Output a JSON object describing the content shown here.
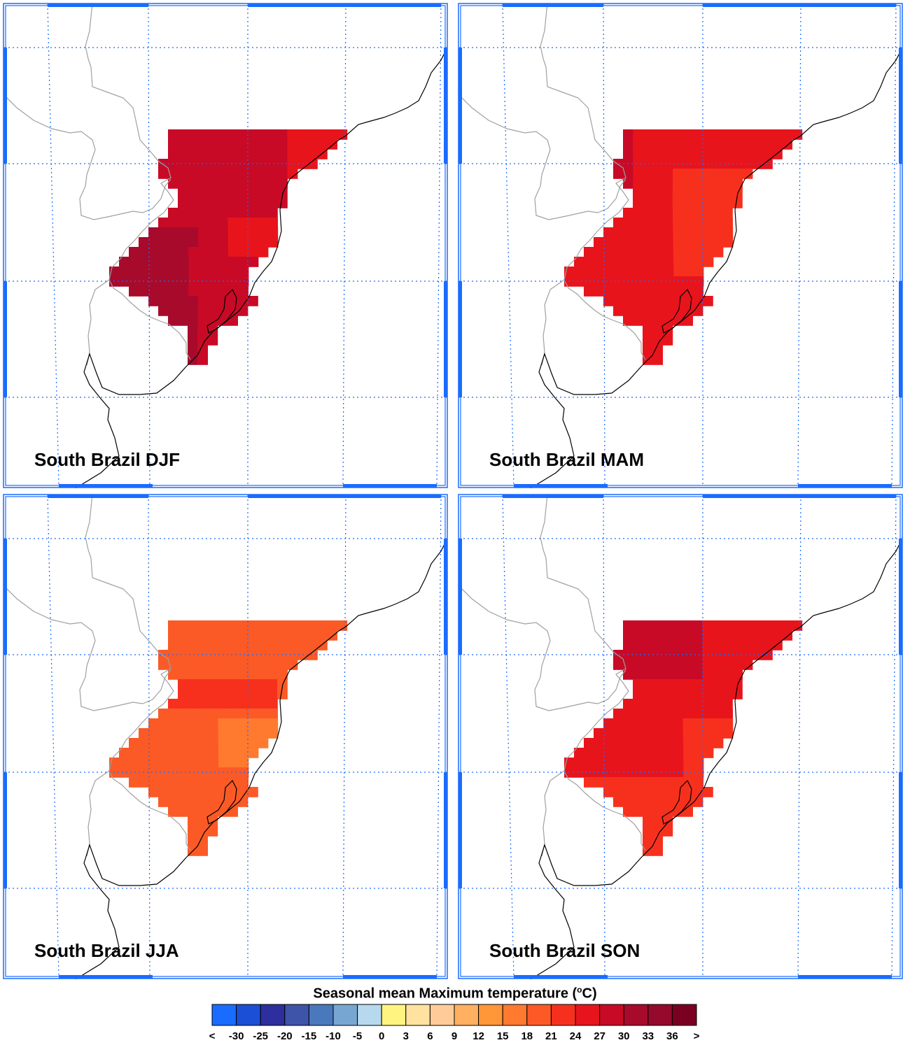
{
  "figure": {
    "panels": [
      {
        "id": "djf",
        "title": "South Brazil DJF"
      },
      {
        "id": "mam",
        "title": "South Brazil MAM"
      },
      {
        "id": "jja",
        "title": "South Brazil JJA"
      },
      {
        "id": "son",
        "title": "South Brazil SON"
      }
    ],
    "legend": {
      "title_main": "Seasonal mean Maximum temperature (",
      "title_sup": "o",
      "title_end": "C)",
      "labels": [
        "<",
        "-30",
        "-25",
        "-20",
        "-15",
        "-10",
        "-5",
        "0",
        "3",
        "6",
        "9",
        "12",
        "15",
        "18",
        "21",
        "24",
        "27",
        "30",
        "33",
        "36",
        ">"
      ],
      "colors": [
        "#1a6cff",
        "#1b4fd6",
        "#2e2e9e",
        "#3d54a8",
        "#4a78bc",
        "#78a6d2",
        "#b7d9ee",
        "#fff47f",
        "#ffe2a0",
        "#ffcc99",
        "#ffb060",
        "#ff9638",
        "#ff7a2e",
        "#fb5a26",
        "#f7301e",
        "#e8141c",
        "#c80a26",
        "#a80a2c",
        "#950a2c",
        "#7a0022"
      ]
    }
  },
  "map_style": {
    "frame_color": "#1a6cff",
    "grid_color": "#1a6cff",
    "border_color": "#a0a0a0",
    "coast_color": "#000000"
  },
  "chart_data": {
    "type": "heatmap",
    "region": "South Brazil",
    "seasons": [
      "DJF",
      "MAM",
      "JJA",
      "SON"
    ],
    "legend_levels_degC": [
      -30,
      -25,
      -20,
      -15,
      -10,
      -5,
      0,
      3,
      6,
      9,
      12,
      15,
      18,
      21,
      24,
      27,
      30,
      33,
      36
    ],
    "approx_seasonal_mean_range_degC": {
      "DJF": [
        27,
        36
      ],
      "MAM": [
        21,
        30
      ],
      "JJA": [
        15,
        24
      ],
      "SON": [
        21,
        33
      ]
    }
  }
}
